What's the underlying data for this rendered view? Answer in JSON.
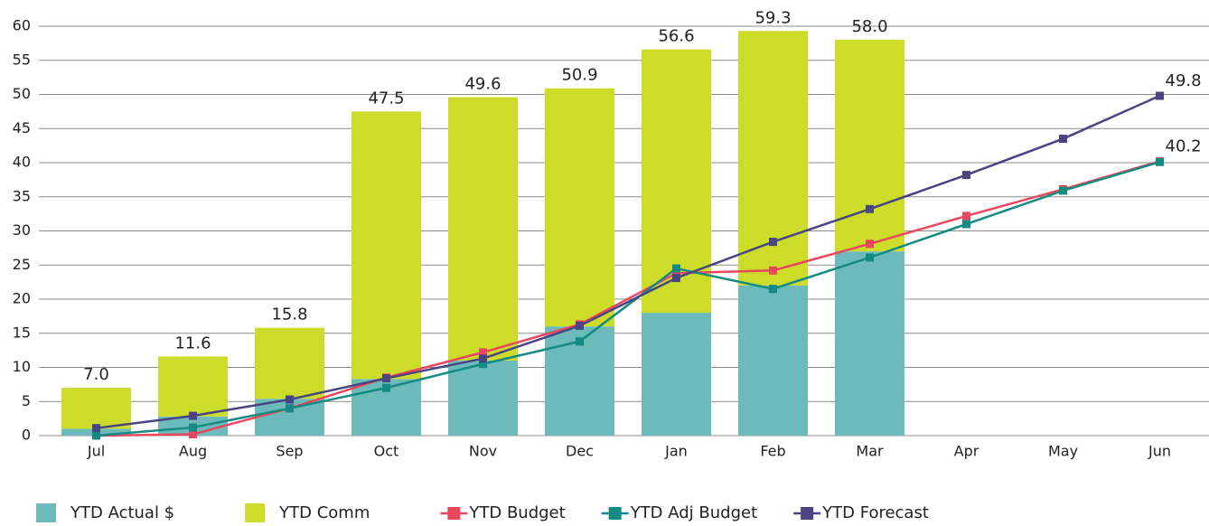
{
  "chart_data": {
    "type": "bar-line",
    "categories": [
      "Jul",
      "Aug",
      "Sep",
      "Oct",
      "Nov",
      "Dec",
      "Jan",
      "Feb",
      "Mar",
      "Apr",
      "May",
      "Jun"
    ],
    "bars": [
      {
        "name": "YTD Actual $",
        "color": "#6dbabb",
        "values": [
          1.0,
          2.8,
          5.4,
          8.3,
          11.0,
          16.0,
          18.0,
          22.0,
          27.0,
          null,
          null,
          null
        ]
      },
      {
        "name": "YTD Comm",
        "color": "#cddc29",
        "values": [
          6.0,
          8.8,
          10.4,
          39.2,
          38.6,
          34.9,
          38.6,
          37.3,
          31.0,
          null,
          null,
          null
        ]
      }
    ],
    "bar_labels": [
      "7.0",
      "11.6",
      "15.8",
      "47.5",
      "49.6",
      "50.9",
      "56.6",
      "59.3",
      "58.0",
      null,
      null,
      null
    ],
    "series": [
      {
        "name": "YTD Budget",
        "color": "#e8475e",
        "values": [
          0,
          0.2,
          4.0,
          8.5,
          12.2,
          16.3,
          23.8,
          24.2,
          28.1,
          32.2,
          36.1,
          40.2
        ],
        "value_labels": [
          null,
          null,
          null,
          null,
          null,
          null,
          null,
          null,
          null,
          null,
          null,
          "40.2"
        ]
      },
      {
        "name": "YTD Adj Budget",
        "color": "#138a82",
        "values": [
          0,
          1.2,
          4.0,
          7.0,
          10.5,
          13.8,
          24.5,
          21.5,
          26.1,
          31.0,
          35.9,
          40.1
        ],
        "value_labels": [
          null,
          null,
          null,
          null,
          null,
          null,
          null,
          null,
          null,
          null,
          null,
          null
        ]
      },
      {
        "name": "YTD Forecast",
        "color": "#4a4482",
        "values": [
          1.1,
          2.9,
          5.3,
          8.4,
          11.3,
          16.1,
          23.1,
          28.4,
          33.2,
          38.2,
          43.5,
          49.8
        ],
        "value_labels": [
          null,
          null,
          null,
          null,
          null,
          null,
          null,
          null,
          null,
          null,
          null,
          "49.8"
        ]
      }
    ],
    "ylim": [
      0,
      60
    ],
    "yticks": [
      0,
      5,
      10,
      15,
      20,
      25,
      30,
      35,
      40,
      45,
      50,
      55,
      60
    ],
    "grid": true,
    "legend": "bottom"
  }
}
